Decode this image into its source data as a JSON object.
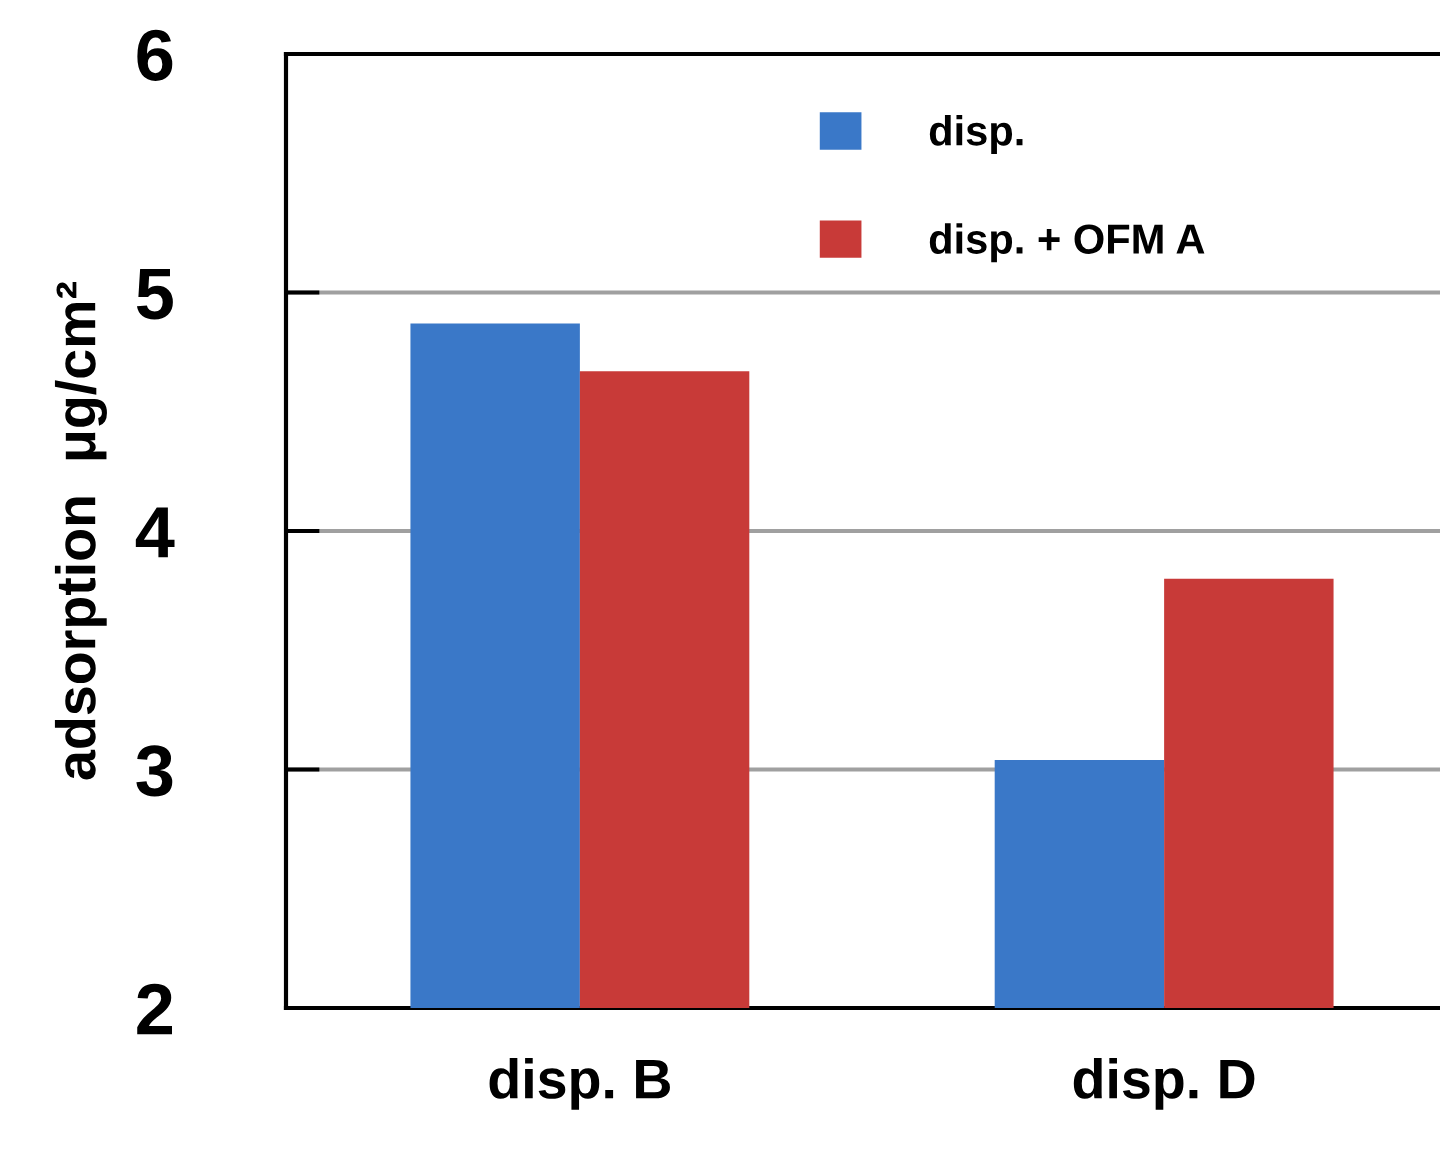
{
  "chart_data": {
    "type": "bar",
    "ylabel": "adsorption  μg/cm²",
    "categories": [
      "disp. B",
      "disp. D"
    ],
    "series": [
      {
        "name": "disp.",
        "color": "#3a78c8",
        "values": [
          4.87,
          3.04
        ]
      },
      {
        "name": "disp. + OFM A",
        "color": "#c83a38",
        "values": [
          4.67,
          3.8
        ]
      }
    ],
    "ylim": [
      2,
      6
    ],
    "yticks": [
      2,
      3,
      4,
      5,
      6
    ],
    "grid": "y",
    "legend": "top"
  }
}
